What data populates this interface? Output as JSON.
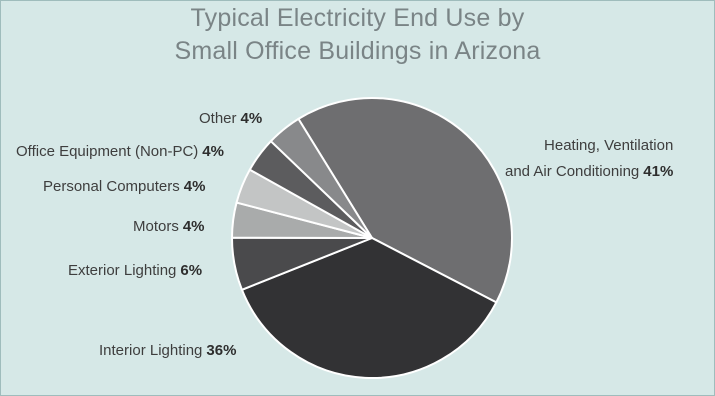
{
  "chart_data": {
    "type": "pie",
    "title_lines": [
      "Typical Electricity End Use by",
      "Small Office Buildings in Arizona"
    ],
    "slices": [
      {
        "label": "Heating, Ventilation and Air Conditioning",
        "label_lines": [
          "Heating, Ventilation",
          "and Air Conditioning"
        ],
        "value": 41,
        "value_text": "41%",
        "color": "#6e6e70"
      },
      {
        "label": "Interior Lighting",
        "value": 36,
        "value_text": "36%",
        "color": "#323234"
      },
      {
        "label": "Exterior Lighting",
        "value": 6,
        "value_text": "6%",
        "color": "#4a4a4c"
      },
      {
        "label": "Motors",
        "value": 4,
        "value_text": "4%",
        "color": "#a9abab"
      },
      {
        "label": "Personal Computers",
        "value": 4,
        "value_text": "4%",
        "color": "#c3c5c5"
      },
      {
        "label": "Office Equipment (Non-PC)",
        "value": 4,
        "value_text": "4%",
        "color": "#5c5c5e"
      },
      {
        "label": "Other",
        "value": 4,
        "value_text": "4%",
        "color": "#88898b"
      }
    ]
  }
}
